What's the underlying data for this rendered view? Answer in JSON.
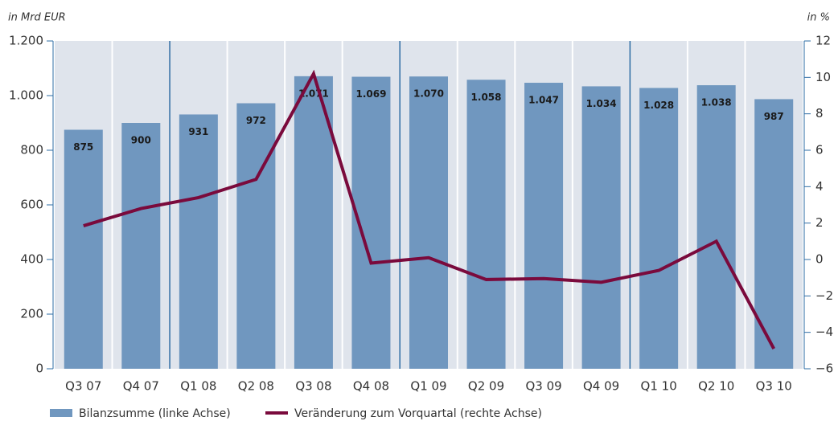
{
  "chart_data": {
    "type": "bar_line",
    "left_axis_label": "in Mrd EUR",
    "right_axis_label": "in %",
    "categories": [
      "Q3 07",
      "Q4 07",
      "Q1 08",
      "Q2 08",
      "Q3 08",
      "Q4 08",
      "Q1 09",
      "Q2 09",
      "Q3 09",
      "Q4 09",
      "Q1 10",
      "Q2 10",
      "Q3 10"
    ],
    "series": [
      {
        "name": "Bilanzsumme (linke Achse)",
        "type": "bar",
        "color": "#7097bf",
        "values": [
          875,
          900,
          931,
          972,
          1071,
          1069,
          1070,
          1058,
          1047,
          1034,
          1028,
          1038,
          987
        ],
        "value_labels": [
          "875",
          "900",
          "931",
          "972",
          "1.071",
          "1.069",
          "1.070",
          "1.058",
          "1.047",
          "1.034",
          "1.028",
          "1.038",
          "987"
        ]
      },
      {
        "name": "Veränderung zum Vorquartal (rechte Achse)",
        "type": "line",
        "axis": "y2",
        "color": "#7a0a3c",
        "values": [
          1.85,
          2.8,
          3.4,
          4.4,
          10.2,
          -0.2,
          0.1,
          -1.1,
          -1.05,
          -1.25,
          -0.6,
          1.0,
          -4.9
        ]
      }
    ],
    "ylim": [
      0,
      1200
    ],
    "yticks": [
      0,
      200,
      400,
      600,
      800,
      {
        "value": 1000,
        "label": "1.000"
      },
      {
        "value": 1200,
        "label": "1.200"
      }
    ],
    "y2lim": [
      -6,
      12
    ],
    "y2ticks": [
      {
        "value": -6,
        "label": "−6"
      },
      {
        "value": -4,
        "label": "−4"
      },
      {
        "value": -2,
        "label": "−2"
      },
      0,
      2,
      4,
      6,
      8,
      10,
      12
    ]
  }
}
